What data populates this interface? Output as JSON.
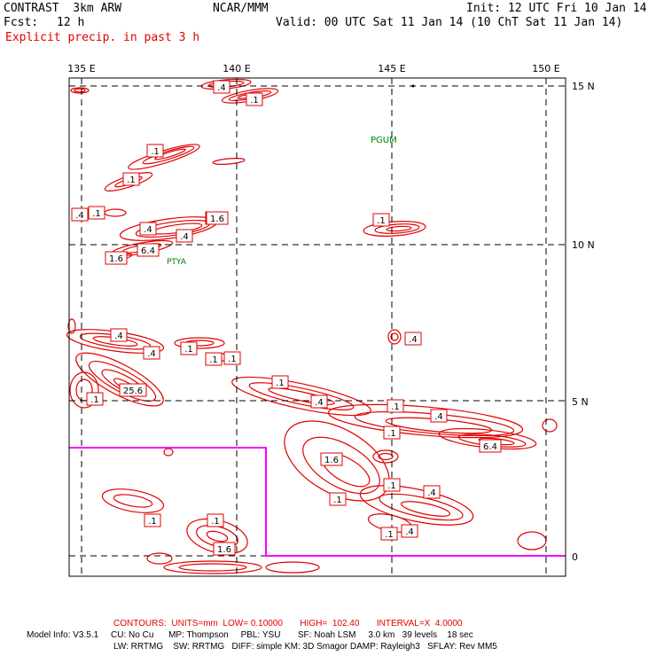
{
  "header": {
    "model_name": "CONTRAST  3km ARW",
    "institution": "NCAR/MMM",
    "init_time": "Init: 12 UTC Fri 10 Jan 14",
    "fcst_label": "Fcst:",
    "fcst_value": "12 h",
    "valid_time": "Valid: 00 UTC Sat 11 Jan 14 (10 ChT Sat 11 Jan 14)",
    "field_title": "Explicit precip. in past 3 h"
  },
  "map": {
    "lon_labels": [
      "135 E",
      "140 E",
      "145 E",
      "150 E"
    ],
    "lat_labels": [
      "15 N",
      "10 N",
      "5 N",
      "0"
    ],
    "stations": [
      "PGUM",
      "PTYA"
    ],
    "contour_labels": [
      ".4",
      ".1",
      ".1",
      ".1",
      ".1",
      ".4",
      ".1",
      ".4",
      "1.6",
      ".4",
      "1.6",
      "6.4",
      "1.6",
      ".4",
      ".4",
      ".1",
      ".1",
      ".1",
      ".4",
      "25.6",
      ".1",
      ".1",
      ".4",
      ".1",
      ".4",
      ".1",
      "6.4",
      "1.6",
      ".1",
      ".1",
      ".4",
      ".1",
      ".1",
      "1.6",
      ".1",
      ".4"
    ],
    "colors": {
      "contour": "#e00000",
      "domain_box": "#ff00ff",
      "station": "#008000",
      "grid": "#000000"
    }
  },
  "footer": {
    "contours_line": "CONTOURS:  UNITS=mm  LOW= 0.10000       HIGH=  102.40       INTERVAL=X  4.0000",
    "model_info_line1": "Model Info: V3.5.1     CU: No Cu      MP: Thompson     PBL: YSU       SF: Noah LSM     3.0 km   39 levels    18 sec",
    "model_info_line2": "LW: RRTMG    SW: RRTMG   DIFF: simple KM: 3D Smagor DAMP: Rayleigh3   SFLAY: Rev MM5"
  }
}
